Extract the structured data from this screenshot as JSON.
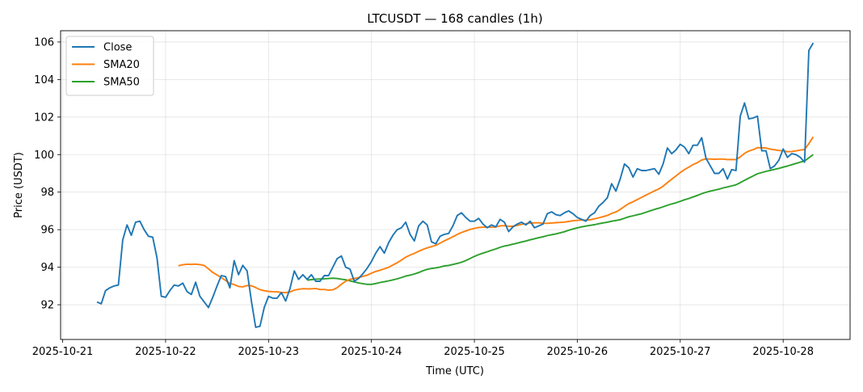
{
  "chart_data": {
    "type": "line",
    "title": "LTCUSDT — 168 candles (1h)",
    "xlabel": "Time (UTC)",
    "ylabel": "Price (USDT)",
    "x_start": "2025-10-21 08:00",
    "x_interval_hours": 1,
    "xlim_days_from_2025_10_21": [
      -0.02,
      7.65
    ],
    "ylim": [
      90.15,
      106.6
    ],
    "x_ticks": [
      "2025-10-21",
      "2025-10-22",
      "2025-10-23",
      "2025-10-24",
      "2025-10-25",
      "2025-10-26",
      "2025-10-27",
      "2025-10-28"
    ],
    "y_ticks": [
      92,
      94,
      96,
      98,
      100,
      102,
      104,
      106
    ],
    "grid": true,
    "legend_position": "top-left",
    "colors": {
      "close": "#1f77b4",
      "sma20": "#ff7f0e",
      "sma50": "#2ca02c"
    },
    "series": [
      {
        "name": "Close",
        "values": [
          92.15,
          92.05,
          92.75,
          92.9,
          93.0,
          93.05,
          95.45,
          96.25,
          95.7,
          96.4,
          96.45,
          96.0,
          95.65,
          95.6,
          94.5,
          92.45,
          92.4,
          92.75,
          93.05,
          93.0,
          93.15,
          92.7,
          92.55,
          93.2,
          92.45,
          92.15,
          91.85,
          92.4,
          93.0,
          93.55,
          93.5,
          92.9,
          94.35,
          93.6,
          94.1,
          93.8,
          92.2,
          90.8,
          90.85,
          91.85,
          92.45,
          92.35,
          92.35,
          92.65,
          92.2,
          92.85,
          93.8,
          93.35,
          93.6,
          93.35,
          93.6,
          93.25,
          93.25,
          93.55,
          93.55,
          94.0,
          94.45,
          94.6,
          94.0,
          93.9,
          93.25,
          93.4,
          93.65,
          93.95,
          94.3,
          94.75,
          95.1,
          94.75,
          95.3,
          95.7,
          96.0,
          96.1,
          96.4,
          95.75,
          95.4,
          96.2,
          96.45,
          96.25,
          95.35,
          95.25,
          95.65,
          95.75,
          95.8,
          96.2,
          96.75,
          96.9,
          96.65,
          96.45,
          96.45,
          96.6,
          96.3,
          96.1,
          96.25,
          96.15,
          96.55,
          96.4,
          95.9,
          96.15,
          96.3,
          96.4,
          96.25,
          96.45,
          96.1,
          96.2,
          96.3,
          96.85,
          96.95,
          96.8,
          96.75,
          96.9,
          97.0,
          96.85,
          96.65,
          96.55,
          96.45,
          96.75,
          96.9,
          97.25,
          97.45,
          97.7,
          98.45,
          98.05,
          98.7,
          99.5,
          99.3,
          98.8,
          99.25,
          99.15,
          99.15,
          99.2,
          99.25,
          98.95,
          99.5,
          100.35,
          100.05,
          100.25,
          100.55,
          100.4,
          100.05,
          100.5,
          100.5,
          100.9,
          99.8,
          99.4,
          99.0,
          99.0,
          99.25,
          98.7,
          99.2,
          99.15,
          102.05,
          102.75,
          101.9,
          101.95,
          102.05,
          100.2,
          100.2,
          99.25,
          99.4,
          99.7,
          100.3,
          99.85,
          100.05,
          100.0,
          99.85,
          99.6,
          105.55,
          105.95
        ]
      },
      {
        "name": "SMA20",
        "window": 20
      },
      {
        "name": "SMA50",
        "window": 50
      }
    ]
  }
}
